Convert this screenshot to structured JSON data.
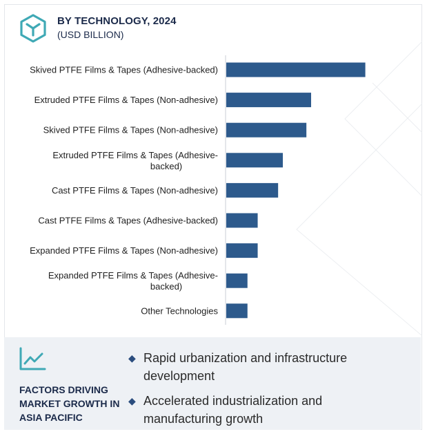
{
  "header": {
    "title": "BY TECHNOLOGY, 2024",
    "subtitle": "(USD BILLION)"
  },
  "colors": {
    "bar": "#2d5a8c",
    "title": "#1b2a4a",
    "panel_bg": "#eef1f5",
    "accent": "#3fa9b5"
  },
  "chart_data": {
    "type": "bar",
    "orientation": "horizontal",
    "title": "BY TECHNOLOGY, 2024",
    "subtitle": "(USD BILLION)",
    "categories": [
      "Skived PTFE Films & Tapes (Adhesive-backed)",
      "Extruded PTFE Films & Tapes (Non-adhesive)",
      "Skived PTFE Films & Tapes (Non-adhesive)",
      "Extruded PTFE Films & Tapes (Adhesive-backed)",
      "Cast PTFE Films & Tapes (Non-adhesive)",
      "Cast PTFE Films & Tapes (Adhesive-backed)",
      "Expanded PTFE Films & Tapes (Non-adhesive)",
      "Expanded PTFE Films & Tapes (Adhesive-backed)",
      "Other Technologies"
    ],
    "values": [
      177,
      108,
      102,
      72,
      66,
      40,
      40,
      27,
      27
    ],
    "xlim": [
      0,
      180
    ],
    "axis_values_shown": false,
    "grid": false,
    "legend": "none"
  },
  "factors": {
    "title": "FACTORS DRIVING MARKET GROWTH IN ASIA PACIFIC",
    "bullets": [
      "Rapid urbanization and infrastructure development",
      "Accelerated industrialization and manufacturing growth"
    ],
    "icon": "trend-line-icon",
    "bullet_icon": "diamond-icon"
  }
}
